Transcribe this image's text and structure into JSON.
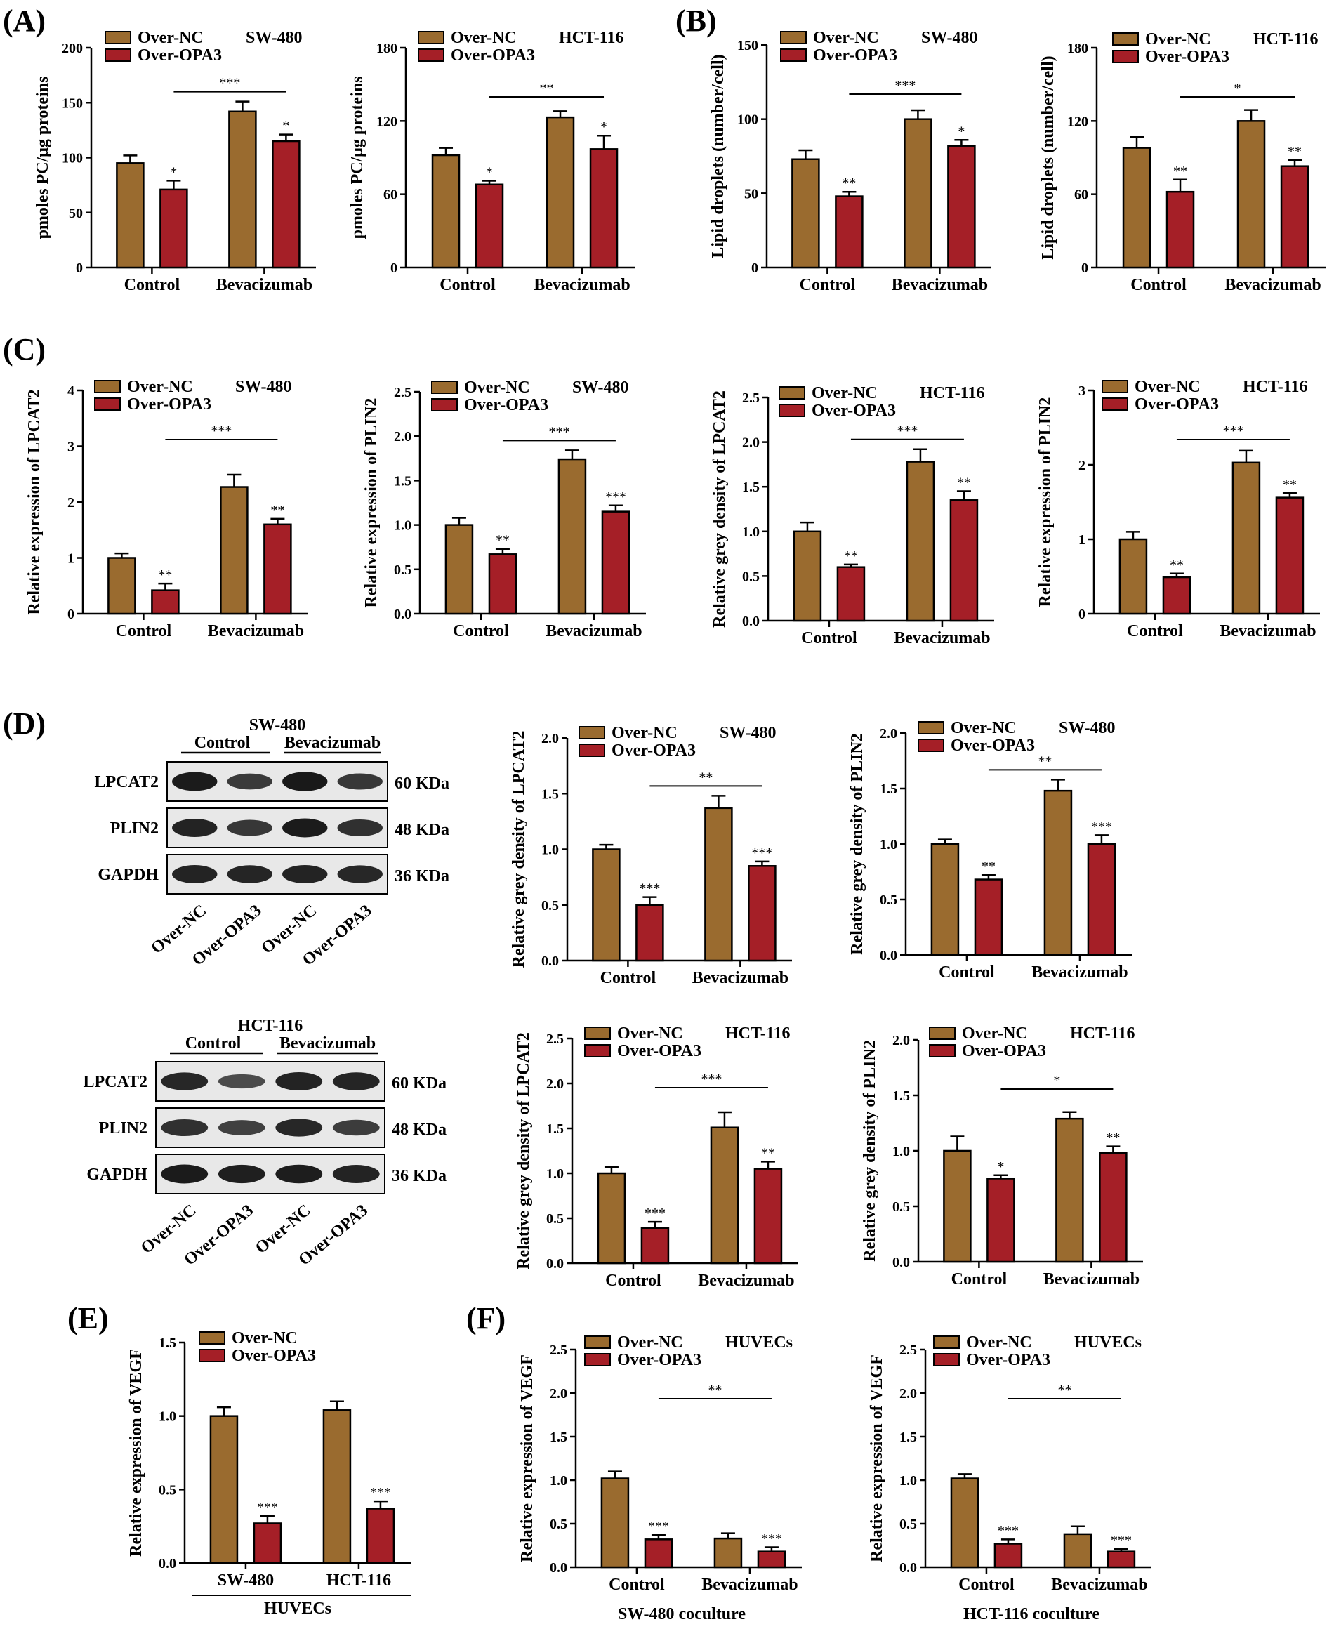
{
  "colors": {
    "over_nc": "#9a6b2f",
    "over_opa3": "#a51f27",
    "outline": "#000000"
  },
  "panel_labels": [
    "(A)",
    "(B)",
    "(C)",
    "(D)",
    "(E)",
    "(F)"
  ],
  "chart_data": [
    {
      "id": "A1",
      "panel": "(A)",
      "type": "bar",
      "ylabel": "pmoles PC/μg proteins",
      "ylim": [
        0,
        200
      ],
      "yticks": [
        "0",
        "50",
        "100",
        "150",
        "200"
      ],
      "categories": [
        "Control",
        "Bevacizumab"
      ],
      "series": [
        {
          "name": "Over-NC",
          "values": [
            95,
            142
          ],
          "errors": [
            7,
            9
          ]
        },
        {
          "name": "Over-OPA3",
          "values": [
            71,
            115
          ],
          "errors": [
            8,
            6
          ]
        }
      ],
      "legend": [
        "Over-NC",
        "Over-OPA3"
      ],
      "cell_line": "SW-480",
      "stars": [
        "*",
        "*"
      ],
      "bracket_label": "***"
    },
    {
      "id": "A2",
      "panel": "",
      "type": "bar",
      "ylabel": "pmoles PC/μg proteins",
      "ylim": [
        0,
        180
      ],
      "yticks": [
        "0",
        "60",
        "120",
        "180"
      ],
      "categories": [
        "Control",
        "Bevacizumab"
      ],
      "series": [
        {
          "name": "Over-NC",
          "values": [
            92,
            123
          ],
          "errors": [
            6,
            5
          ]
        },
        {
          "name": "Over-OPA3",
          "values": [
            68,
            97
          ],
          "errors": [
            3,
            11
          ]
        }
      ],
      "legend": [
        "Over-NC",
        "Over-OPA3"
      ],
      "cell_line": "HCT-116",
      "stars": [
        "*",
        "*"
      ],
      "bracket_label": "**"
    },
    {
      "id": "B1",
      "panel": "(B)",
      "type": "bar",
      "ylabel": "Lipid droplets (number/cell)",
      "ylim": [
        0,
        150
      ],
      "yticks": [
        "0",
        "50",
        "100",
        "150"
      ],
      "categories": [
        "Control",
        "Bevacizumab"
      ],
      "series": [
        {
          "name": "Over-NC",
          "values": [
            73,
            100
          ],
          "errors": [
            6,
            6
          ]
        },
        {
          "name": "Over-OPA3",
          "values": [
            48,
            82
          ],
          "errors": [
            3,
            4
          ]
        }
      ],
      "legend": [
        "Over-NC",
        "Over-OPA3"
      ],
      "cell_line": "SW-480",
      "stars": [
        "**",
        "*"
      ],
      "bracket_label": "***"
    },
    {
      "id": "B2",
      "panel": "",
      "type": "bar",
      "ylabel": "Lipid droplets (number/cell)",
      "ylim": [
        0,
        180
      ],
      "yticks": [
        "0",
        "60",
        "120",
        "180"
      ],
      "categories": [
        "Control",
        "Bevacizumab"
      ],
      "series": [
        {
          "name": "Over-NC",
          "values": [
            98,
            120
          ],
          "errors": [
            9,
            9
          ]
        },
        {
          "name": "Over-OPA3",
          "values": [
            62,
            83
          ],
          "errors": [
            10,
            5
          ]
        }
      ],
      "legend": [
        "Over-NC",
        "Over-OPA3"
      ],
      "cell_line": "HCT-116",
      "stars": [
        "**",
        "**"
      ],
      "bracket_label": "*"
    },
    {
      "id": "C1",
      "panel": "(C)",
      "type": "bar",
      "ylabel": "Relative expression of LPCAT2",
      "ylim": [
        0,
        4
      ],
      "yticks": [
        "0",
        "1",
        "2",
        "3",
        "4"
      ],
      "categories": [
        "Control",
        "Bevacizumab"
      ],
      "series": [
        {
          "name": "Over-NC",
          "values": [
            1.0,
            2.27
          ],
          "errors": [
            0.08,
            0.22
          ]
        },
        {
          "name": "Over-OPA3",
          "values": [
            0.42,
            1.6
          ],
          "errors": [
            0.12,
            0.1
          ]
        }
      ],
      "legend": [
        "Over-NC",
        "Over-OPA3"
      ],
      "cell_line": "SW-480",
      "stars": [
        "**",
        "**"
      ],
      "bracket_label": "***"
    },
    {
      "id": "C2",
      "panel": "",
      "type": "bar",
      "ylabel": "Relative expression of PLIN2",
      "ylim": [
        0,
        2.5
      ],
      "yticks": [
        "0.0",
        "0.5",
        "1.0",
        "1.5",
        "2.0",
        "2.5"
      ],
      "categories": [
        "Control",
        "Bevacizumab"
      ],
      "series": [
        {
          "name": "Over-NC",
          "values": [
            1.0,
            1.74
          ],
          "errors": [
            0.08,
            0.1
          ]
        },
        {
          "name": "Over-OPA3",
          "values": [
            0.67,
            1.15
          ],
          "errors": [
            0.06,
            0.07
          ]
        }
      ],
      "legend": [
        "Over-NC",
        "Over-OPA3"
      ],
      "cell_line": "SW-480",
      "stars": [
        "**",
        "***"
      ],
      "bracket_label": "***"
    },
    {
      "id": "C3",
      "panel": "",
      "type": "bar",
      "ylabel": "Relative grey density of LPCAT2",
      "ylim": [
        0,
        2.5
      ],
      "yticks": [
        "0.0",
        "0.5",
        "1.0",
        "1.5",
        "2.0",
        "2.5"
      ],
      "categories": [
        "Control",
        "Bevacizumab"
      ],
      "series": [
        {
          "name": "Over-NC",
          "values": [
            1.0,
            1.78
          ],
          "errors": [
            0.1,
            0.14
          ]
        },
        {
          "name": "Over-OPA3",
          "values": [
            0.6,
            1.35
          ],
          "errors": [
            0.03,
            0.1
          ]
        }
      ],
      "legend": [
        "Over-NC",
        "Over-OPA3"
      ],
      "cell_line": "HCT-116",
      "stars": [
        "**",
        "**"
      ],
      "bracket_label": "***"
    },
    {
      "id": "C4",
      "panel": "",
      "type": "bar",
      "ylabel": "Relative expression of PLIN2",
      "ylim": [
        0,
        3
      ],
      "yticks": [
        "0",
        "1",
        "2",
        "3"
      ],
      "categories": [
        "Control",
        "Bevacizumab"
      ],
      "series": [
        {
          "name": "Over-NC",
          "values": [
            1.0,
            2.03
          ],
          "errors": [
            0.1,
            0.16
          ]
        },
        {
          "name": "Over-OPA3",
          "values": [
            0.49,
            1.56
          ],
          "errors": [
            0.05,
            0.06
          ]
        }
      ],
      "legend": [
        "Over-NC",
        "Over-OPA3"
      ],
      "cell_line": "HCT-116",
      "stars": [
        "**",
        "**"
      ],
      "bracket_label": "***"
    },
    {
      "id": "D1",
      "panel": "",
      "type": "bar",
      "ylabel": "Relative grey density of LPCAT2",
      "ylim": [
        0,
        2.0
      ],
      "yticks": [
        "0.0",
        "0.5",
        "1.0",
        "1.5",
        "2.0"
      ],
      "categories": [
        "Control",
        "Bevacizumab"
      ],
      "series": [
        {
          "name": "Over-NC",
          "values": [
            1.0,
            1.37
          ],
          "errors": [
            0.04,
            0.11
          ]
        },
        {
          "name": "Over-OPA3",
          "values": [
            0.5,
            0.85
          ],
          "errors": [
            0.07,
            0.04
          ]
        }
      ],
      "legend": [
        "Over-NC",
        "Over-OPA3"
      ],
      "cell_line": "SW-480",
      "stars": [
        "***",
        "***"
      ],
      "bracket_label": "**"
    },
    {
      "id": "D2",
      "panel": "",
      "type": "bar",
      "ylabel": "Relative grey density of PLIN2",
      "ylim": [
        0,
        2.0
      ],
      "yticks": [
        "0.0",
        "0.5",
        "1.0",
        "1.5",
        "2.0"
      ],
      "categories": [
        "Control",
        "Bevacizumab"
      ],
      "series": [
        {
          "name": "Over-NC",
          "values": [
            1.0,
            1.48
          ],
          "errors": [
            0.04,
            0.1
          ]
        },
        {
          "name": "Over-OPA3",
          "values": [
            0.68,
            1.0
          ],
          "errors": [
            0.04,
            0.08
          ]
        }
      ],
      "legend": [
        "Over-NC",
        "Over-OPA3"
      ],
      "cell_line": "SW-480",
      "stars": [
        "**",
        "***"
      ],
      "bracket_label": "**"
    },
    {
      "id": "D3",
      "panel": "",
      "type": "bar",
      "ylabel": "Relative grey density of LPCAT2",
      "ylim": [
        0,
        2.5
      ],
      "yticks": [
        "0.0",
        "0.5",
        "1.0",
        "1.5",
        "2.0",
        "2.5"
      ],
      "categories": [
        "Control",
        "Bevacizumab"
      ],
      "series": [
        {
          "name": "Over-NC",
          "values": [
            1.0,
            1.51
          ],
          "errors": [
            0.07,
            0.17
          ]
        },
        {
          "name": "Over-OPA3",
          "values": [
            0.39,
            1.05
          ],
          "errors": [
            0.07,
            0.08
          ]
        }
      ],
      "legend": [
        "Over-NC",
        "Over-OPA3"
      ],
      "cell_line": "HCT-116",
      "stars": [
        "***",
        "**"
      ],
      "bracket_label": "***"
    },
    {
      "id": "D4",
      "panel": "",
      "type": "bar",
      "ylabel": "Relative grey density of PLIN2",
      "ylim": [
        0,
        2.0
      ],
      "yticks": [
        "0.0",
        "0.5",
        "1.0",
        "1.5",
        "2.0"
      ],
      "categories": [
        "Control",
        "Bevacizumab"
      ],
      "series": [
        {
          "name": "Over-NC",
          "values": [
            1.0,
            1.29
          ],
          "errors": [
            0.13,
            0.06
          ]
        },
        {
          "name": "Over-OPA3",
          "values": [
            0.75,
            0.98
          ],
          "errors": [
            0.03,
            0.06
          ]
        }
      ],
      "legend": [
        "Over-NC",
        "Over-OPA3"
      ],
      "cell_line": "HCT-116",
      "stars": [
        "*",
        "**"
      ],
      "bracket_label": "*"
    },
    {
      "id": "E",
      "panel": "(E)",
      "type": "bar",
      "ylabel": "Relative expression of VEGF",
      "ylim": [
        0,
        1.5
      ],
      "yticks": [
        "0.0",
        "0.5",
        "1.0",
        "1.5"
      ],
      "categories": [
        "SW-480",
        "HCT-116"
      ],
      "series": [
        {
          "name": "Over-NC",
          "values": [
            1.0,
            1.04
          ],
          "errors": [
            0.06,
            0.06
          ]
        },
        {
          "name": "Over-OPA3",
          "values": [
            0.27,
            0.37
          ],
          "errors": [
            0.05,
            0.05
          ]
        }
      ],
      "legend": [
        "Over-NC",
        "Over-OPA3"
      ],
      "cell_line": "",
      "stars": [
        "***",
        "***"
      ],
      "bracket_label": "",
      "xlabel": "HUVECs"
    },
    {
      "id": "F1",
      "panel": "(F)",
      "type": "bar",
      "ylabel": "Relative expression of VEGF",
      "ylim": [
        0,
        2.5
      ],
      "yticks": [
        "0.0",
        "0.5",
        "1.0",
        "1.5",
        "2.0",
        "2.5"
      ],
      "categories": [
        "Control",
        "Bevacizumab"
      ],
      "series": [
        {
          "name": "Over-NC",
          "values": [
            1.02,
            0.33
          ],
          "errors": [
            0.08,
            0.06
          ]
        },
        {
          "name": "Over-OPA3",
          "values": [
            0.32,
            0.18
          ],
          "errors": [
            0.05,
            0.05
          ]
        }
      ],
      "legend": [
        "Over-NC",
        "Over-OPA3"
      ],
      "cell_line": "HUVECs",
      "stars": [
        "***",
        "***"
      ],
      "bracket_label": "**",
      "xlabel": "SW-480 coculture"
    },
    {
      "id": "F2",
      "panel": "",
      "type": "bar",
      "ylabel": "Relative expression of VEGF",
      "ylim": [
        0,
        2.5
      ],
      "yticks": [
        "0.0",
        "0.5",
        "1.0",
        "1.5",
        "2.0",
        "2.5"
      ],
      "categories": [
        "Control",
        "Bevacizumab"
      ],
      "series": [
        {
          "name": "Over-NC",
          "values": [
            1.02,
            0.38
          ],
          "errors": [
            0.05,
            0.09
          ]
        },
        {
          "name": "Over-OPA3",
          "values": [
            0.27,
            0.18
          ],
          "errors": [
            0.05,
            0.03
          ]
        }
      ],
      "legend": [
        "Over-NC",
        "Over-OPA3"
      ],
      "cell_line": "HUVECs",
      "stars": [
        "***",
        "***"
      ],
      "bracket_label": "**",
      "xlabel": "HCT-116 coculture"
    }
  ],
  "blots": [
    {
      "id": "blot-sw480",
      "cell_line": "SW-480",
      "group_labels": [
        "Control",
        "Bevacizumab"
      ],
      "rows": [
        {
          "protein": "LPCAT2",
          "size": "60 KDa",
          "intensity": [
            0.92,
            0.62,
            0.95,
            0.65
          ]
        },
        {
          "protein": "PLIN2",
          "size": "48 KDa",
          "intensity": [
            0.85,
            0.65,
            0.92,
            0.72
          ]
        },
        {
          "protein": "GAPDH",
          "size": "36 KDa",
          "intensity": [
            0.85,
            0.82,
            0.85,
            0.8
          ]
        }
      ],
      "lane_labels": [
        "Over-NC",
        "Over-OPA3",
        "Over-NC",
        "Over-OPA3"
      ]
    },
    {
      "id": "blot-hct116",
      "cell_line": "HCT-116",
      "group_labels": [
        "Control",
        "Bevacizumab"
      ],
      "rows": [
        {
          "protein": "LPCAT2",
          "size": "60 KDa",
          "intensity": [
            0.8,
            0.45,
            0.85,
            0.82
          ]
        },
        {
          "protein": "PLIN2",
          "size": "48 KDa",
          "intensity": [
            0.72,
            0.55,
            0.8,
            0.6
          ]
        },
        {
          "protein": "GAPDH",
          "size": "36 KDa",
          "intensity": [
            0.92,
            0.88,
            0.9,
            0.85
          ]
        }
      ],
      "lane_labels": [
        "Over-NC",
        "Over-OPA3",
        "Over-NC",
        "Over-OPA3"
      ]
    }
  ]
}
